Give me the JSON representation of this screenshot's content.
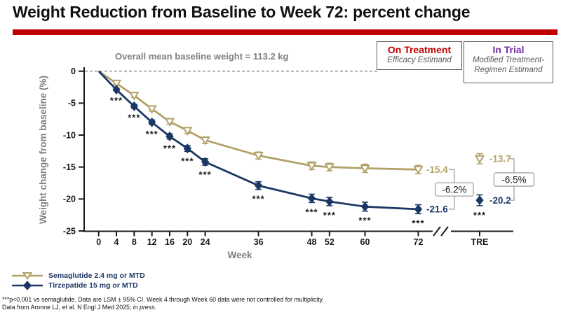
{
  "slide": {
    "title": "Weight Reduction from Baseline to Week 72: percent change",
    "accent_bar_color": "#c00000"
  },
  "annotations": {
    "baseline_note": "Overall mean baseline weight = 113.2 kg",
    "estimands": [
      {
        "title": "On Treatment",
        "subtitle": "Efficacy Estimand",
        "title_color": "#c00000"
      },
      {
        "title": "In Trial",
        "subtitle": "Modified Treatment-Regimen Estimand",
        "title_color": "#7030a0"
      }
    ]
  },
  "chart_data": {
    "type": "line",
    "xlabel": "Week",
    "ylabel": "Weight change from baseline (%)",
    "x_ticks": [
      0,
      4,
      8,
      12,
      16,
      20,
      24,
      36,
      48,
      52,
      60,
      72
    ],
    "x_extra_tick": "TRE",
    "axis_break_after_week": 72,
    "y_ticks": [
      0,
      -5,
      -10,
      -15,
      -20,
      -25
    ],
    "ylim": [
      -25,
      0
    ],
    "grid": false,
    "series": [
      {
        "name": "Semaglutide 2.4 mg or MTD",
        "color": "#b2a269",
        "marker": "open-triangle-down",
        "weeks": [
          0,
          4,
          8,
          12,
          16,
          20,
          24,
          36,
          48,
          52,
          60,
          72
        ],
        "values": [
          0,
          -1.9,
          -3.8,
          -5.9,
          -7.9,
          -9.3,
          -10.8,
          -13.2,
          -14.8,
          -15.0,
          -15.2,
          -15.4
        ],
        "errors": [
          0,
          0.2,
          0.3,
          0.35,
          0.4,
          0.45,
          0.5,
          0.55,
          0.6,
          0.6,
          0.65,
          0.65
        ],
        "end_label": "-15.4",
        "tre_value": -13.7,
        "tre_error": 0.8,
        "tre_label": "-13.7"
      },
      {
        "name": "Tirzepatide 15 mg or MTD",
        "color": "#1b3864",
        "marker": "filled-diamond",
        "weeks": [
          0,
          4,
          8,
          12,
          16,
          20,
          24,
          36,
          48,
          52,
          60,
          72
        ],
        "values": [
          0,
          -2.9,
          -5.5,
          -8.0,
          -10.2,
          -12.1,
          -14.2,
          -17.9,
          -19.9,
          -20.4,
          -21.2,
          -21.6
        ],
        "errors": [
          0,
          0.2,
          0.3,
          0.35,
          0.4,
          0.45,
          0.5,
          0.6,
          0.65,
          0.65,
          0.7,
          0.7
        ],
        "end_label": "-21.6",
        "tre_value": -20.2,
        "tre_error": 0.85,
        "tre_label": "-20.2",
        "significance_marker": "***",
        "significance_weeks": [
          4,
          8,
          12,
          16,
          20,
          24,
          36,
          48,
          52,
          60,
          72
        ],
        "significance_at_tre": true
      }
    ],
    "differences": [
      {
        "at": "week_72",
        "label": "-6.2%"
      },
      {
        "at": "TRE",
        "label": "-6.5%"
      }
    ]
  },
  "footnotes": {
    "line1": "***p<0.001 vs semaglutide. Data are LSM ± 95% CI. Week 4 through Week 60 data were not controlled for multiplicity.",
    "line2_normal": "Data from Aronne LJ, et al. N Engl J Med 2025; ",
    "line2_italic": "in press."
  }
}
